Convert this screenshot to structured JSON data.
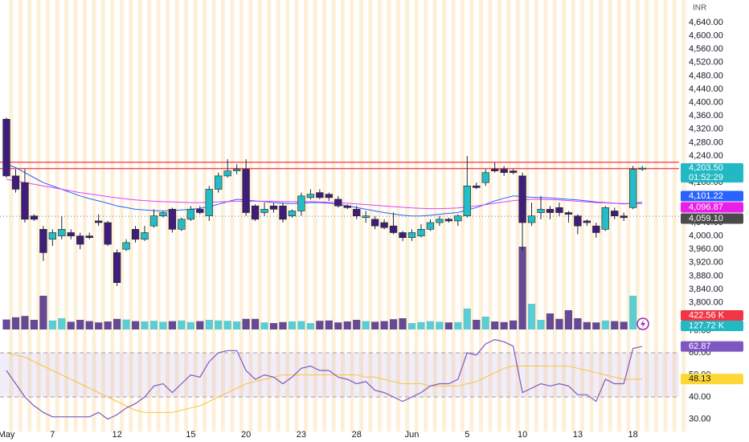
{
  "chart_data": {
    "type": "candlestick",
    "currency": "INR",
    "xlim": [
      -0.7,
      73
    ],
    "xticks": [
      {
        "value": 0,
        "label": "May"
      },
      {
        "value": 5,
        "label": "7"
      },
      {
        "value": 12,
        "label": "12"
      },
      {
        "value": 20,
        "label": "15"
      },
      {
        "value": 26,
        "label": "20"
      },
      {
        "value": 32,
        "label": "23"
      },
      {
        "value": 38,
        "label": "28"
      },
      {
        "value": 44,
        "label": "Jun"
      },
      {
        "value": 50,
        "label": "5"
      },
      {
        "value": 56,
        "label": "10"
      },
      {
        "value": 62,
        "label": "13"
      },
      {
        "value": 68,
        "label": "18"
      }
    ],
    "ylim": [
      3719.5,
      4707.5
    ],
    "yticks": [
      {
        "value": 4640,
        "label": "4,640.00"
      },
      {
        "value": 4600,
        "label": "4,600.00"
      },
      {
        "value": 4560,
        "label": "4,560.00"
      },
      {
        "value": 4520,
        "label": "4,520.00"
      },
      {
        "value": 4480,
        "label": "4,480.00"
      },
      {
        "value": 4440,
        "label": "4,440.00"
      },
      {
        "value": 4400,
        "label": "4,400.00"
      },
      {
        "value": 4360,
        "label": "4,360.00"
      },
      {
        "value": 4320,
        "label": "4,320.00"
      },
      {
        "value": 4280,
        "label": "4,280.00"
      },
      {
        "value": 4240,
        "label": "4,240.00"
      },
      {
        "value": 4160,
        "label": "4,160.00"
      },
      {
        "value": 4040,
        "label": "4,040.00"
      },
      {
        "value": 4000,
        "label": "4,000.00"
      },
      {
        "value": 3960,
        "label": "3,960.00"
      },
      {
        "value": 3920,
        "label": "3,920.00"
      },
      {
        "value": 3880,
        "label": "3,880.00"
      },
      {
        "value": 3840,
        "label": "3,840.00"
      },
      {
        "value": 3800,
        "label": "3,800.00"
      }
    ],
    "up_color": "#26bcc6",
    "down_color": "#3f1d7a",
    "open": [
      4350,
      4180,
      4160,
      4060,
      4020,
      3990,
      4000,
      4010,
      4000,
      4000,
      4045,
      4040,
      3950,
      3960,
      4020,
      3990,
      4030,
      4060,
      4080,
      4020,
      4050,
      4080,
      4060,
      4140,
      4180,
      4195,
      4200,
      4090,
      4070,
      4090,
      4090,
      4060,
      4075,
      4115,
      4130,
      4125,
      4110,
      4090,
      4080,
      4055,
      4050,
      4040,
      4030,
      4010,
      3995,
      4000,
      4020,
      4040,
      4050,
      4045,
      4060,
      4150,
      4160,
      4200,
      4200,
      4195,
      4180,
      4040,
      4070,
      4080,
      4085,
      4070,
      4060,
      4045,
      4030,
      4020,
      4075,
      4060,
      4085,
      4200
    ],
    "high": [
      4355,
      4200,
      4200,
      4065,
      4030,
      4020,
      4060,
      4020,
      4010,
      4010,
      4065,
      4045,
      3960,
      3990,
      4030,
      4030,
      4080,
      4075,
      4085,
      4055,
      4090,
      4090,
      4150,
      4190,
      4230,
      4215,
      4230,
      4095,
      4100,
      4100,
      4100,
      4080,
      4130,
      4140,
      4140,
      4130,
      4120,
      4095,
      4090,
      4075,
      4060,
      4050,
      4070,
      4015,
      4020,
      4035,
      4050,
      4060,
      4055,
      4065,
      4240,
      4160,
      4200,
      4220,
      4210,
      4200,
      4190,
      4100,
      4120,
      4090,
      4100,
      4075,
      4065,
      4050,
      4040,
      4090,
      4085,
      4070,
      4210,
      4210
    ],
    "low": [
      4175,
      4130,
      4040,
      4045,
      3925,
      3970,
      3990,
      3990,
      3960,
      3990,
      4030,
      3970,
      3850,
      3955,
      3980,
      3985,
      4025,
      4055,
      4010,
      4015,
      4045,
      4065,
      4045,
      4130,
      4175,
      4185,
      4060,
      4045,
      4060,
      4070,
      4040,
      4055,
      4060,
      4110,
      4110,
      4105,
      4085,
      4080,
      4050,
      4040,
      4020,
      4020,
      4005,
      3985,
      3985,
      3995,
      4015,
      4030,
      4040,
      4030,
      4055,
      4140,
      4150,
      4190,
      4180,
      4185,
      3955,
      4030,
      4050,
      4050,
      4060,
      4040,
      4005,
      4030,
      3995,
      4015,
      4050,
      4045,
      4080,
      4195
    ],
    "close": [
      4180,
      4140,
      4050,
      4050,
      3950,
      4010,
      4020,
      4000,
      3975,
      3995,
      4040,
      3975,
      3860,
      3980,
      3990,
      4010,
      4060,
      4070,
      4020,
      4050,
      4080,
      4070,
      4140,
      4180,
      4195,
      4200,
      4070,
      4050,
      4080,
      4080,
      4050,
      4075,
      4120,
      4125,
      4115,
      4115,
      4090,
      4085,
      4060,
      4060,
      4030,
      4025,
      4010,
      3995,
      4010,
      4020,
      4040,
      4050,
      4045,
      4060,
      4150,
      4145,
      4190,
      4195,
      4190,
      4190,
      4040,
      4060,
      4080,
      4070,
      4070,
      4065,
      4030,
      4040,
      4010,
      4085,
      4060,
      4055,
      4200,
      4203.5
    ],
    "hlines": [
      {
        "value": 4221,
        "color": "#f23645"
      },
      {
        "value": 4202,
        "color": "#f23645"
      }
    ],
    "moving_averages": [
      {
        "color": "#2962ff",
        "values": [
          4215,
          4205,
          4190,
          4175,
          4160,
          4150,
          4140,
          4130,
          4120,
          4112,
          4105,
          4098,
          4090,
          4085,
          4080,
          4078,
          4076,
          4075,
          4076,
          4078,
          4080,
          4083,
          4088,
          4095,
          4103,
          4110,
          4108,
          4105,
          4103,
          4100,
          4098,
          4097,
          4098,
          4100,
          4100,
          4098,
          4095,
          4090,
          4085,
          4080,
          4075,
          4070,
          4066,
          4062,
          4060,
          4060,
          4062,
          4065,
          4068,
          4070,
          4078,
          4085,
          4095,
          4105,
          4113,
          4120,
          4118,
          4116,
          4115,
          4114,
          4112,
          4110,
          4108,
          4105,
          4102,
          4100,
          4098,
          4096,
          4098,
          4101.22
        ]
      },
      {
        "color": "#e040fb",
        "values": [
          4170,
          4165,
          4160,
          4155,
          4150,
          4145,
          4140,
          4135,
          4130,
          4126,
          4122,
          4118,
          4114,
          4111,
          4108,
          4106,
          4104,
          4103,
          4102,
          4101,
          4100,
          4100,
          4101,
          4102,
          4103,
          4104,
          4104,
          4104,
          4104,
          4104,
          4103,
          4103,
          4103,
          4103,
          4102,
          4101,
          4100,
          4098,
          4096,
          4094,
          4092,
          4090,
          4088,
          4086,
          4084,
          4083,
          4082,
          4082,
          4083,
          4084,
          4087,
          4090,
          4094,
          4098,
          4102,
          4106,
          4108,
          4110,
          4110,
          4109,
          4108,
          4106,
          4104,
          4102,
          4100,
          4099,
          4098,
          4097,
          4097,
          4096.87
        ]
      }
    ],
    "price_labels": [
      {
        "value": 4203.5,
        "label": "4,203.50",
        "countdown": "01:52:29",
        "color": "#22b8c4"
      },
      {
        "value": 4101.22,
        "label": "4,101.22",
        "color": "#2962ff"
      },
      {
        "value": 4096.87,
        "label": "4,096.87",
        "color": "#e91ee9"
      },
      {
        "value": 4059.1,
        "label": "4,059.10",
        "color": "#4a4a4a",
        "dotted_line": true
      }
    ],
    "volume": {
      "ylim": [
        0,
        10250
      ],
      "values": [
        310,
        380,
        420,
        300,
        1050,
        280,
        350,
        240,
        300,
        260,
        220,
        250,
        330,
        310,
        260,
        250,
        270,
        240,
        260,
        280,
        230,
        260,
        300,
        280,
        270,
        250,
        330,
        330,
        220,
        200,
        230,
        250,
        260,
        200,
        270,
        280,
        220,
        250,
        300,
        260,
        240,
        260,
        320,
        350,
        200,
        230,
        260,
        240,
        220,
        230,
        650,
        300,
        400,
        250,
        230,
        280,
        2575,
        800,
        300,
        500,
        330,
        600,
        350,
        230,
        220,
        280,
        260,
        240,
        1050,
        127.72
      ],
      "labels": [
        {
          "value": 422.56,
          "label": "422.56 K",
          "color": "#f23645"
        },
        {
          "value": 127.72,
          "label": "127.72 K",
          "color": "#22b8c4"
        }
      ]
    },
    "rsi": {
      "ylim": [
        24.36,
        70.55
      ],
      "yticks": [
        {
          "value": 70,
          "label": "70.00"
        },
        {
          "value": 60,
          "label": "60.00"
        },
        {
          "value": 50,
          "label": "50.00"
        },
        {
          "value": 40,
          "label": "40.00"
        },
        {
          "value": 30,
          "label": "30.00"
        }
      ],
      "band": [
        40,
        60
      ],
      "line": {
        "color": "#7e57c2",
        "values": [
          52,
          46,
          40,
          36,
          33,
          31,
          31,
          31,
          31,
          31,
          33,
          30,
          32,
          35,
          37,
          40,
          45,
          46,
          42,
          46,
          50,
          49,
          56,
          60,
          61,
          61,
          52,
          48,
          50,
          49,
          46,
          49,
          53,
          54,
          52,
          52,
          49,
          48,
          46,
          47,
          43,
          42,
          40,
          38,
          40,
          42,
          45,
          46,
          46,
          48,
          60,
          59,
          64,
          66,
          65,
          63,
          42,
          44,
          46,
          45,
          46,
          45,
          41,
          41,
          38,
          48,
          46,
          46,
          62,
          62.87
        ]
      },
      "ma": {
        "color": "#f5c542",
        "values": [
          60,
          59,
          58,
          56,
          54,
          52,
          50,
          48,
          46,
          44,
          42,
          40,
          38,
          36,
          34,
          33,
          33,
          33,
          33,
          34,
          35,
          36,
          38,
          40,
          42,
          44,
          46,
          47,
          48,
          49,
          50,
          50,
          50,
          50,
          50,
          50,
          50,
          50,
          50,
          49,
          49,
          48,
          47,
          46,
          46,
          46,
          45,
          45,
          45,
          45,
          46,
          47,
          49,
          51,
          53,
          54,
          54,
          54,
          54,
          54,
          54,
          54,
          53,
          52,
          51,
          50,
          49,
          48,
          48,
          48.13
        ]
      },
      "labels": [
        {
          "value": 62.87,
          "label": "62.87",
          "color": "#7e57c2"
        },
        {
          "value": 48.13,
          "label": "48.13",
          "color": "#fdd835"
        }
      ]
    }
  }
}
